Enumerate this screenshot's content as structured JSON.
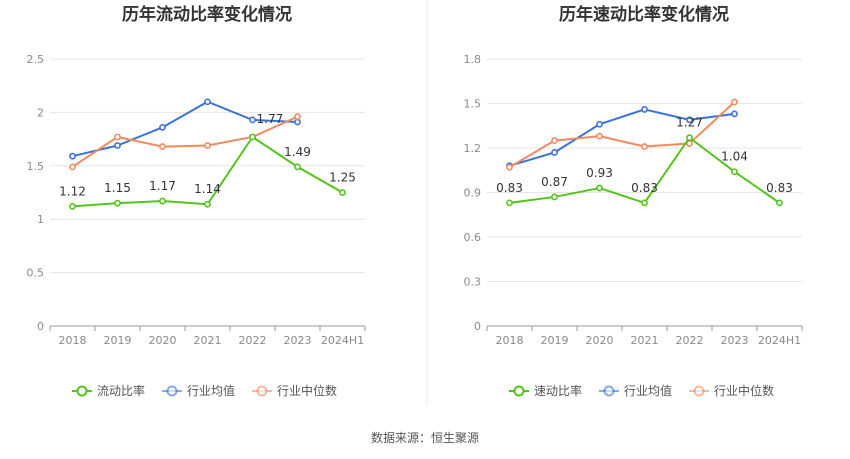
{
  "source_text": "数据来源：恒生聚源",
  "colors": {
    "company": "#52c41a",
    "avg": "#3a72d8",
    "median": "#f28a5f"
  },
  "chart_data": [
    {
      "type": "line",
      "title": "历年流动比率变化情况",
      "categories": [
        "2018",
        "2019",
        "2020",
        "2021",
        "2022",
        "2023",
        "2024H1"
      ],
      "ylim": [
        0,
        2.5
      ],
      "yticks": [
        "0",
        "0.5",
        "1",
        "1.5",
        "2",
        "2.5"
      ],
      "ytick_values": [
        0,
        0.5,
        1,
        1.5,
        2,
        2.5
      ],
      "grid": true,
      "legend_position": "bottom",
      "series": [
        {
          "name": "流动比率",
          "role": "company",
          "values": [
            1.12,
            1.15,
            1.17,
            1.14,
            1.77,
            1.49,
            1.25
          ],
          "labels": [
            "1.12",
            "1.15",
            "1.17",
            "1.14",
            "1.77",
            "1.49",
            "1.25"
          ]
        },
        {
          "name": "行业均值",
          "role": "avg",
          "values": [
            1.59,
            1.69,
            1.86,
            2.1,
            1.93,
            1.91,
            null
          ]
        },
        {
          "name": "行业中位数",
          "role": "median",
          "values": [
            1.49,
            1.77,
            1.68,
            1.69,
            1.77,
            1.96,
            null
          ]
        }
      ]
    },
    {
      "type": "line",
      "title": "历年速动比率变化情况",
      "categories": [
        "2018",
        "2019",
        "2020",
        "2021",
        "2022",
        "2023",
        "2024H1"
      ],
      "ylim": [
        0,
        1.8
      ],
      "yticks": [
        "0",
        "0.3",
        "0.6",
        "0.9",
        "1.2",
        "1.5",
        "1.8"
      ],
      "ytick_values": [
        0,
        0.3,
        0.6,
        0.9,
        1.2,
        1.5,
        1.8
      ],
      "grid": true,
      "legend_position": "bottom",
      "series": [
        {
          "name": "速动比率",
          "role": "company",
          "values": [
            0.83,
            0.87,
            0.93,
            0.83,
            1.27,
            1.04,
            0.83
          ],
          "labels": [
            "0.83",
            "0.87",
            "0.93",
            "0.83",
            "1.27",
            "1.04",
            "0.83"
          ]
        },
        {
          "name": "行业均值",
          "role": "avg",
          "values": [
            1.08,
            1.17,
            1.36,
            1.46,
            1.39,
            1.43,
            null
          ]
        },
        {
          "name": "行业中位数",
          "role": "median",
          "values": [
            1.07,
            1.25,
            1.28,
            1.21,
            1.23,
            1.51,
            null
          ]
        }
      ]
    }
  ]
}
